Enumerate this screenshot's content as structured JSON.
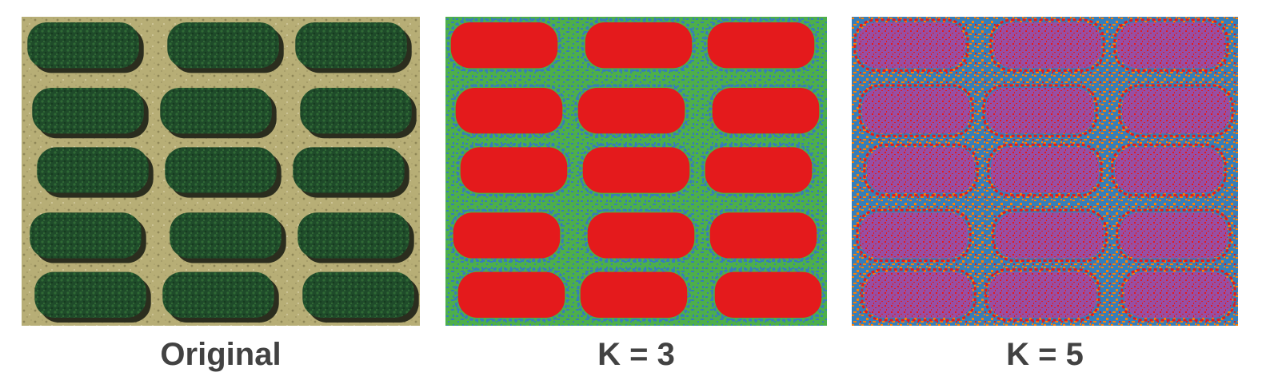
{
  "figure": {
    "panels": [
      {
        "id": "original",
        "caption": "Original"
      },
      {
        "id": "k3",
        "caption": "K = 3"
      },
      {
        "id": "k5",
        "caption": "K = 5"
      }
    ]
  },
  "colors": {
    "caption_text": "#424242",
    "original_soil": "#b7ae76",
    "original_soil_dark": "#8f8757",
    "original_canopy": "#1f4b2a",
    "original_canopy_light": "#2f6a35",
    "original_shadow": "#2b2d1e",
    "k3_canopy": "#e41a1c",
    "k3_cluster_blue": "#377eb8",
    "k3_cluster_green": "#4daf4a",
    "k5_canopy_purple": "#984ea3",
    "k5_canopy_red": "#e41a1c",
    "k5_cluster_blue": "#377eb8",
    "k5_cluster_orange": "#ff7f00"
  }
}
